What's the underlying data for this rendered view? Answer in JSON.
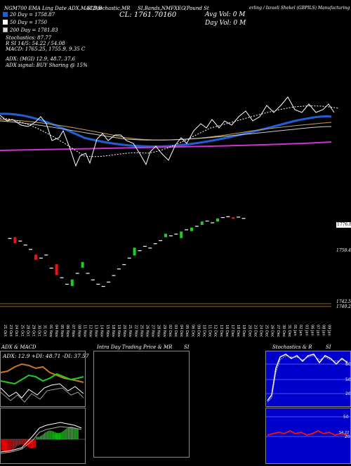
{
  "header": {
    "top_left": "NGM700 EMA Ling Date ADX,MACD,B",
    "top_mid": "SI,Stochastic,MR",
    "top_right": "SI,Bands,NMFXEG",
    "cl": "CL: 1761.70160",
    "tagline_a": "(Pound St",
    "tagline_b": "erling / Israeli Shekel (GBPILS) Manufacturing"
  },
  "legend": [
    {
      "label": "20  Day = 1758.87",
      "color": "#1f5fd6"
    },
    {
      "label": "50  Day = 1750",
      "color": "#ffffff"
    },
    {
      "label": "200  Day = 1781.83",
      "color": "#d9d9d9"
    }
  ],
  "stats": {
    "stochastic": "Stochastics: 87.77",
    "rsi": "R                SI 14/5: 54.22 / 54.08",
    "macd": "MACD: 1765.25,  1755.9,  9.35 C",
    "adx": "ADX:                    (MGI) 12.9,  48.7,  37.6",
    "adx_signal": "ADX  signal:                            BUY Sharing @ 15%"
  },
  "vol": {
    "avg": "Avg Vol: 0   M",
    "day": "Day Vol: 0   M"
  },
  "price_labels": {
    "upper": "1776.80",
    "mid": "1758.44",
    "low1": "1742.55",
    "low2": "1740.25"
  },
  "x_labels": [
    "21 Oct",
    "23 Oct",
    "24 Oct",
    "25 Oct",
    "28 Oct",
    "29 Oct",
    "30 Oct",
    "31 Oct",
    "01 Nov",
    "04 Nov",
    "05 Nov",
    "06 Nov",
    "07 Nov",
    "08 Nov",
    "11 Nov",
    "12 Nov",
    "13 Nov",
    "14 Nov",
    "15 Nov",
    "18 Nov",
    "19 Nov",
    "20 Nov",
    "21 Nov",
    "22 Nov",
    "25 Nov",
    "26 Nov",
    "27 Nov",
    "28 Nov",
    "29 Nov",
    "02 Dec",
    "03 Dec",
    "04 Dec",
    "05 Dec",
    "06 Dec",
    "09 Dec",
    "10 Dec",
    "11 Dec",
    "12 Dec",
    "13 Dec",
    "16 Dec",
    "17 Dec",
    "18 Dec",
    "19 Dec",
    "20 Dec",
    "23 Dec",
    "24 Dec",
    "25 Dec",
    "26 Dec",
    "27 Dec",
    "30 Dec",
    "31 Dec",
    "01 Jan",
    "02 Jan",
    "03 Jan",
    "06 Jan",
    "07 Jan",
    "08 Jan",
    "09 Jan"
  ],
  "panels": {
    "adx_title": "ADX  & MACD",
    "adx_readout": "ADX: 12.9  +DI: 48.71  -DI: 37.57",
    "intraday_title": "Intra  Day Trading Price  & MR",
    "intraday_title_b": "SI",
    "stoch_title": "Stochastics & R",
    "stoch_title_b": "SI",
    "stoch_ticks": [
      "80",
      "50",
      "20"
    ],
    "rsi_ticks": [
      "50",
      "20",
      "54.22"
    ]
  },
  "colors": {
    "ema20": "#1f5fd6",
    "ema200": "#cc33cc",
    "bull": "#22cc22",
    "bear": "#ee1111",
    "panel_blue": "#0000cc",
    "orange": "#c8772a"
  },
  "candles": [
    {
      "o": 0.5,
      "c": 0.5
    },
    {
      "o": 0.52,
      "c": 0.38
    },
    {
      "o": 0.44,
      "c": 0.44
    },
    {
      "o": 0.35,
      "c": 0.35
    },
    {
      "o": 0.25,
      "c": 0.25
    },
    {
      "o": 0.12,
      "c": 0.0
    },
    {
      "o": 0.05,
      "c": 0.05
    },
    {
      "o": 0.12,
      "c": 0.12
    },
    {
      "o": -0.18,
      "c": -0.18
    },
    {
      "o": -0.1,
      "c": -0.35
    },
    {
      "o": -0.4,
      "c": -0.4
    },
    {
      "o": -0.55,
      "c": -0.55
    },
    {
      "o": -0.6,
      "c": -0.45
    },
    {
      "o": -0.3,
      "c": -0.3
    },
    {
      "o": -0.18,
      "c": -0.05
    },
    {
      "o": -0.3,
      "c": -0.3
    },
    {
      "o": -0.45,
      "c": -0.45
    },
    {
      "o": -0.55,
      "c": -0.55
    },
    {
      "o": -0.6,
      "c": -0.6
    },
    {
      "o": -0.5,
      "c": -0.5
    },
    {
      "o": -0.35,
      "c": -0.35
    },
    {
      "o": -0.2,
      "c": -0.2
    },
    {
      "o": -0.1,
      "c": -0.1
    },
    {
      "o": 0.05,
      "c": 0.05
    },
    {
      "o": 0.1,
      "c": 0.28
    },
    {
      "o": 0.22,
      "c": 0.22
    },
    {
      "o": 0.32,
      "c": 0.32
    },
    {
      "o": 0.28,
      "c": 0.28
    },
    {
      "o": 0.38,
      "c": 0.38
    },
    {
      "o": 0.45,
      "c": 0.45
    },
    {
      "o": 0.52,
      "c": 0.6
    },
    {
      "o": 0.56,
      "c": 0.56
    },
    {
      "o": 0.6,
      "c": 0.6
    },
    {
      "o": 0.5,
      "c": 0.65
    },
    {
      "o": 0.7,
      "c": 0.7
    },
    {
      "o": 0.66,
      "c": 0.74
    },
    {
      "o": 0.78,
      "c": 0.78
    },
    {
      "o": 0.8,
      "c": 0.88
    },
    {
      "o": 0.9,
      "c": 0.9
    },
    {
      "o": 0.86,
      "c": 0.86
    },
    {
      "o": 0.88,
      "c": 0.95
    },
    {
      "o": 0.98,
      "c": 0.98
    },
    {
      "o": 1.0,
      "c": 1.0
    },
    {
      "o": 0.98,
      "c": 0.94
    },
    {
      "o": 0.99,
      "c": 0.99
    },
    {
      "o": 0.96,
      "c": 0.96
    }
  ]
}
